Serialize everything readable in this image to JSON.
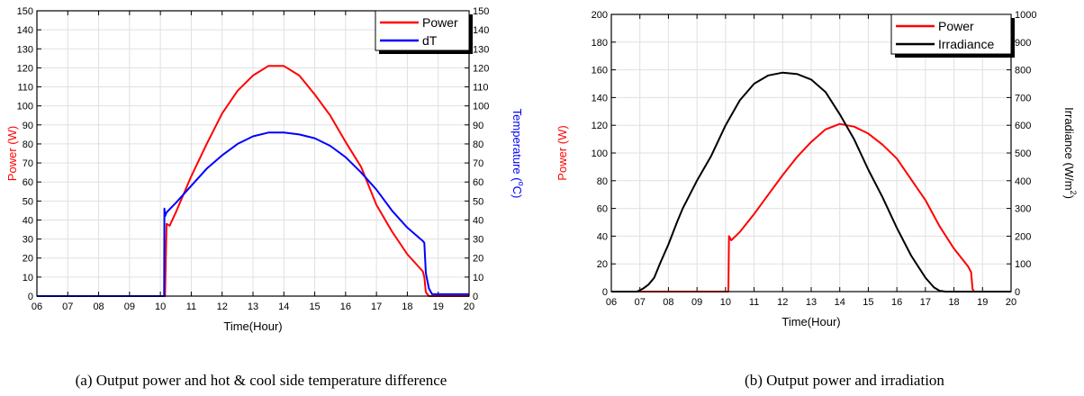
{
  "chart_data": [
    {
      "type": "line",
      "caption": "(a) Output power and hot & cool side temperature difference",
      "xlabel": "Time(Hour)",
      "x_ticks": [
        "06",
        "07",
        "08",
        "09",
        "10",
        "11",
        "12",
        "13",
        "14",
        "15",
        "16",
        "17",
        "18",
        "19",
        "20"
      ],
      "xlim": [
        6,
        20
      ],
      "ylabel": "Power (W)",
      "ylim": [
        0,
        150
      ],
      "y_ticks": [
        0,
        10,
        20,
        30,
        40,
        50,
        60,
        70,
        80,
        90,
        100,
        110,
        120,
        130,
        140,
        150
      ],
      "ylabel_right": "Temperature (",
      "ylabel_right_sup": "o",
      "ylabel_right_end": "C)",
      "ylim_right": [
        0,
        150
      ],
      "y_ticks_right": [
        0,
        10,
        20,
        30,
        40,
        50,
        60,
        70,
        80,
        90,
        100,
        110,
        120,
        130,
        140,
        150
      ],
      "grid": true,
      "legend_position": "top-right",
      "series": [
        {
          "name": "Power",
          "color": "#ff0000",
          "axis": "left",
          "x": [
            6,
            10.15,
            10.2,
            10.3,
            10.5,
            11,
            11.5,
            12,
            12.5,
            13,
            13.5,
            14,
            14.5,
            15,
            15.5,
            16,
            16.5,
            17,
            17.5,
            18,
            18.5,
            18.55,
            18.6,
            18.7,
            19,
            20
          ],
          "y": [
            0,
            0,
            38,
            37,
            44,
            63,
            80,
            96,
            108,
            116,
            121,
            121,
            116,
            106,
            95,
            81,
            68,
            48,
            34,
            22,
            13,
            10,
            2,
            0,
            0,
            0
          ]
        },
        {
          "name": "dT",
          "color": "#0000ff",
          "axis": "right",
          "x": [
            6,
            10.12,
            10.13,
            10.15,
            10.2,
            10.5,
            11,
            11.5,
            12,
            12.5,
            13,
            13.5,
            14,
            14.5,
            15,
            15.5,
            16,
            16.5,
            17,
            17.5,
            18,
            18.5,
            18.55,
            18.6,
            18.7,
            18.8,
            19,
            20
          ],
          "y": [
            0,
            0,
            46,
            42,
            44,
            49,
            58,
            67,
            74,
            80,
            84,
            86,
            86,
            85,
            83,
            79,
            73,
            65,
            56,
            45,
            36,
            29,
            28,
            12,
            4,
            1,
            1,
            1
          ]
        }
      ]
    },
    {
      "type": "line",
      "caption": "(b) Output power and irradiation",
      "xlabel": "Time(Hour)",
      "x_ticks": [
        "06",
        "07",
        "08",
        "09",
        "10",
        "11",
        "12",
        "13",
        "14",
        "15",
        "16",
        "17",
        "18",
        "19",
        "20"
      ],
      "xlim": [
        6,
        20
      ],
      "ylabel": "Power (W)",
      "ylim": [
        0,
        200
      ],
      "y_ticks": [
        0,
        20,
        40,
        60,
        80,
        100,
        120,
        140,
        160,
        180,
        200
      ],
      "ylabel_right": "Irradiance (W/m",
      "ylabel_right_sup": "2",
      "ylabel_right_end": ")",
      "ylim_right": [
        0,
        1000
      ],
      "y_ticks_right": [
        0,
        100,
        200,
        300,
        400,
        500,
        600,
        700,
        800,
        900,
        1000
      ],
      "grid": true,
      "legend_position": "top-right",
      "series": [
        {
          "name": "Power",
          "color": "#ff0000",
          "axis": "left",
          "x": [
            6,
            10.1,
            10.12,
            10.2,
            10.5,
            11,
            11.5,
            12,
            12.5,
            13,
            13.5,
            14,
            14.5,
            15,
            15.5,
            16,
            16.5,
            17,
            17.5,
            18,
            18.5,
            18.6,
            18.65,
            18.7,
            19,
            20
          ],
          "y": [
            0,
            0,
            40,
            37,
            43,
            56,
            70,
            84,
            97,
            108,
            117,
            121,
            119,
            114,
            106,
            96,
            81,
            66,
            47,
            31,
            18,
            14,
            2,
            0,
            0,
            0
          ]
        },
        {
          "name": "Irradiance",
          "color": "#000000",
          "axis": "right",
          "x": [
            6,
            6.9,
            7.1,
            7.3,
            7.5,
            7.7,
            8,
            8.3,
            8.5,
            8.8,
            9,
            9.5,
            10,
            10.5,
            11,
            11.5,
            12,
            12.5,
            13,
            13.5,
            14,
            14.5,
            15,
            15.5,
            16,
            16.5,
            17,
            17.3,
            17.5,
            17.7,
            18,
            20
          ],
          "y": [
            0,
            0,
            10,
            25,
            50,
            100,
            170,
            250,
            300,
            360,
            400,
            490,
            600,
            690,
            750,
            780,
            790,
            785,
            765,
            720,
            640,
            550,
            440,
            340,
            230,
            130,
            50,
            15,
            3,
            0,
            0,
            0
          ]
        }
      ]
    }
  ]
}
